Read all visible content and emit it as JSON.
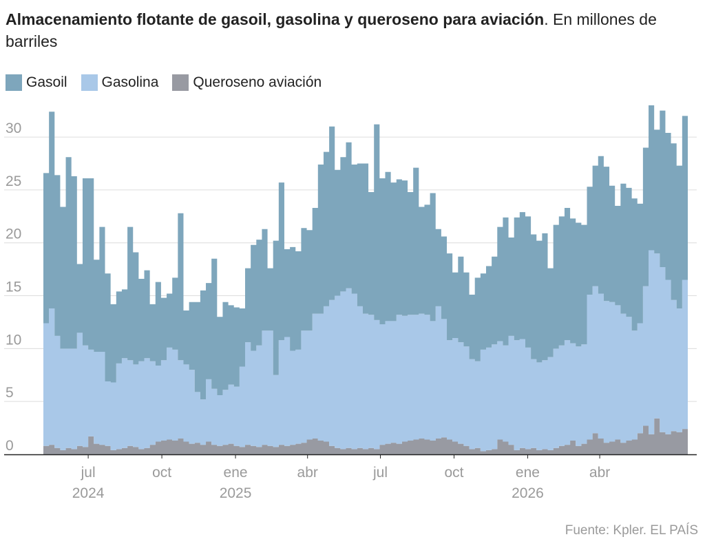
{
  "header": {
    "title_bold": "Almacenamiento flotante de gasoil, gasolina y queroseno para aviación",
    "title_rest": ". En millones de barriles"
  },
  "legend": [
    {
      "label": "Gasoil",
      "color": "#7ea6bc"
    },
    {
      "label": "Gasolina",
      "color": "#a9c8e8"
    },
    {
      "label": "Queroseno aviación",
      "color": "#989aa2"
    }
  ],
  "source": "Fuente: Kpler. EL PAÍS",
  "chart_data": {
    "type": "area",
    "stacked": true,
    "x_unit": "weekly",
    "x_start": "2024-05-06",
    "ylim": [
      0,
      33
    ],
    "y_ticks": [
      0,
      5,
      10,
      15,
      20,
      25,
      30
    ],
    "grid": true,
    "x_ticks": [
      {
        "label": "jul",
        "year": "2024",
        "date": "2024-07-01"
      },
      {
        "label": "oct",
        "year": "",
        "date": "2024-10-01"
      },
      {
        "label": "ene",
        "year": "2025",
        "date": "2025-01-01"
      },
      {
        "label": "abr",
        "year": "",
        "date": "2025-04-01"
      },
      {
        "label": "jul",
        "year": "",
        "date": "2025-07-01"
      },
      {
        "label": "oct",
        "year": "",
        "date": "2025-10-01"
      },
      {
        "label": "ene",
        "year": "2026",
        "date": "2026-01-01"
      },
      {
        "label": "abr",
        "year": "",
        "date": "2026-04-01"
      }
    ],
    "series": [
      {
        "name": "Queroseno aviación",
        "color": "#989aa2",
        "values": [
          0.8,
          0.9,
          0.6,
          0.4,
          0.6,
          0.5,
          0.8,
          0.7,
          1.7,
          1.0,
          0.9,
          0.8,
          0.4,
          0.5,
          0.6,
          0.8,
          0.7,
          0.5,
          0.6,
          0.9,
          1.2,
          1.3,
          1.4,
          1.3,
          1.5,
          1.2,
          1.0,
          1.1,
          0.9,
          1.2,
          0.9,
          0.8,
          0.9,
          1.0,
          0.8,
          0.7,
          0.9,
          0.8,
          0.7,
          0.9,
          0.8,
          0.7,
          0.9,
          0.8,
          0.9,
          1.0,
          1.1,
          1.4,
          1.5,
          1.3,
          1.2,
          0.8,
          0.6,
          0.5,
          0.6,
          0.5,
          0.6,
          0.5,
          0.6,
          0.5,
          0.9,
          1.0,
          1.1,
          1.0,
          1.2,
          1.3,
          1.4,
          1.5,
          1.4,
          1.3,
          1.5,
          1.6,
          1.4,
          1.2,
          1.0,
          0.8,
          0.5,
          0.6,
          0.3,
          0.4,
          0.5,
          1.4,
          1.2,
          0.9,
          0.4,
          0.6,
          0.5,
          0.6,
          0.4,
          0.5,
          0.4,
          0.6,
          0.8,
          0.9,
          1.3,
          0.8,
          1.0,
          1.4,
          2.0,
          1.5,
          1.1,
          1.2,
          1.4,
          1.1,
          1.3,
          1.4,
          2.0,
          2.7,
          1.9,
          3.4,
          2.1,
          1.9,
          2.2,
          2.1,
          2.4
        ]
      },
      {
        "name": "Gasolina",
        "color": "#a9c8e8",
        "values": [
          11.6,
          12.9,
          10.6,
          9.6,
          9.4,
          9.5,
          10.7,
          9.6,
          8.2,
          8.7,
          8.8,
          6.1,
          6.4,
          8.1,
          8.5,
          8.1,
          7.8,
          8.3,
          8.5,
          7.9,
          7.2,
          7.6,
          8.7,
          8.6,
          7.4,
          7.3,
          7.0,
          4.8,
          4.3,
          5.9,
          5.3,
          4.8,
          5.2,
          5.6,
          5.6,
          7.6,
          9.7,
          9.0,
          9.6,
          10.8,
          10.9,
          6.8,
          9.9,
          10.3,
          8.9,
          8.9,
          10.6,
          10.3,
          11.8,
          12.0,
          12.8,
          13.8,
          14.4,
          14.9,
          15.1,
          14.7,
          13.4,
          12.8,
          12.6,
          12.2,
          11.4,
          11.6,
          11.5,
          12.2,
          11.9,
          11.9,
          11.8,
          11.8,
          11.8,
          11.3,
          12.5,
          11.2,
          9.4,
          9.8,
          9.6,
          9.4,
          8.5,
          8.2,
          9.6,
          9.7,
          9.9,
          9.3,
          9.1,
          10.3,
          10.4,
          10.3,
          9.6,
          8.4,
          8.3,
          8.4,
          8.8,
          9.4,
          9.5,
          9.9,
          9.2,
          9.4,
          9.4,
          13.7,
          13.9,
          13.7,
          13.4,
          13.2,
          12.7,
          12.2,
          11.7,
          10.3,
          10.4,
          13.2,
          17.4,
          15.6,
          15.6,
          14.6,
          12.4,
          11.7,
          14.1
        ]
      },
      {
        "name": "Gasoil",
        "color": "#7ea6bc",
        "values": [
          14.2,
          18.6,
          15.2,
          13.4,
          18.1,
          16.3,
          6.5,
          15.8,
          16.2,
          8.7,
          11.8,
          10.2,
          7.4,
          6.8,
          6.5,
          12.6,
          10.6,
          7.8,
          8.3,
          5.4,
          7.9,
          5.9,
          5.1,
          6.8,
          13.9,
          5.1,
          6.4,
          8.5,
          10.3,
          9.1,
          12.3,
          7.4,
          8.3,
          7.5,
          7.5,
          5.5,
          7.0,
          10.0,
          10.0,
          9.6,
          5.9,
          12.7,
          14.9,
          8.3,
          9.8,
          9.3,
          9.7,
          9.5,
          10.0,
          14.1,
          14.6,
          16.4,
          11.9,
          12.7,
          13.8,
          12.2,
          13.5,
          14.2,
          11.6,
          18.5,
          13.8,
          14.1,
          13.1,
          12.8,
          12.8,
          11.6,
          13.9,
          10.1,
          10.4,
          12.1,
          7.3,
          7.8,
          8.2,
          6.2,
          8.1,
          7.0,
          6.1,
          7.9,
          7.2,
          7.7,
          8.3,
          10.8,
          12.1,
          9.3,
          11.6,
          12.0,
          12.4,
          11.8,
          11.5,
          12.0,
          8.4,
          11.7,
          12.2,
          12.5,
          11.8,
          11.7,
          11.3,
          10.2,
          11.4,
          13.0,
          12.7,
          11.0,
          9.4,
          12.3,
          12.2,
          12.5,
          11.3,
          13.1,
          13.7,
          11.7,
          14.8,
          13.9,
          14.8,
          13.5,
          15.5
        ]
      }
    ]
  }
}
